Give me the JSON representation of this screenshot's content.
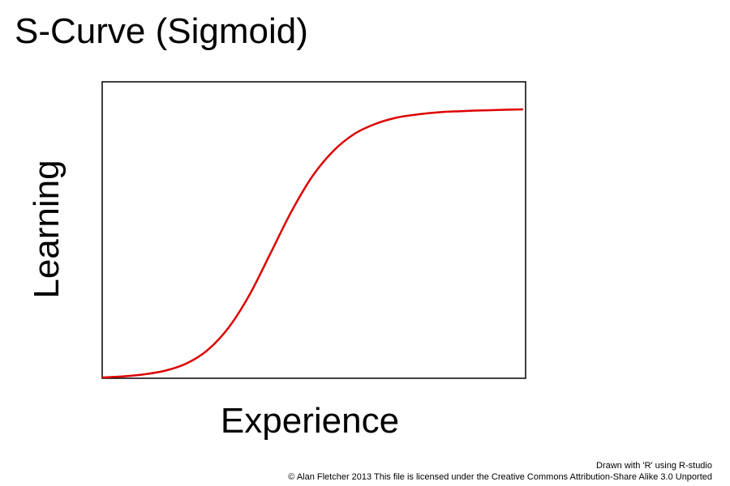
{
  "chart_data": {
    "type": "line",
    "title": "S-Curve (Sigmoid)",
    "xlabel": "Experience",
    "ylabel": "Learning",
    "xlim": [
      0,
      1
    ],
    "ylim": [
      0,
      1
    ],
    "grid": false,
    "axis_ticks": false,
    "series": [
      {
        "color": "#dd0000",
        "function": "sigmoid",
        "x": [
          0,
          0.05,
          0.1,
          0.15,
          0.2,
          0.25,
          0.3,
          0.35,
          0.4,
          0.45,
          0.5,
          0.55,
          0.6,
          0.65,
          0.7,
          0.75,
          0.8,
          0.85,
          0.9,
          0.95,
          1
        ],
        "y": [
          0,
          0.004,
          0.012,
          0.026,
          0.053,
          0.103,
          0.187,
          0.31,
          0.465,
          0.621,
          0.752,
          0.846,
          0.909,
          0.946,
          0.969,
          0.981,
          0.989,
          0.993,
          0.996,
          0.998,
          1.0
        ]
      }
    ]
  },
  "credits": {
    "line1": "Drawn with 'R' using R-studio",
    "line2": "© Alan Fletcher 2013 This file is licensed under the Creative Commons Attribution-Share Alike 3.0 Unported"
  }
}
